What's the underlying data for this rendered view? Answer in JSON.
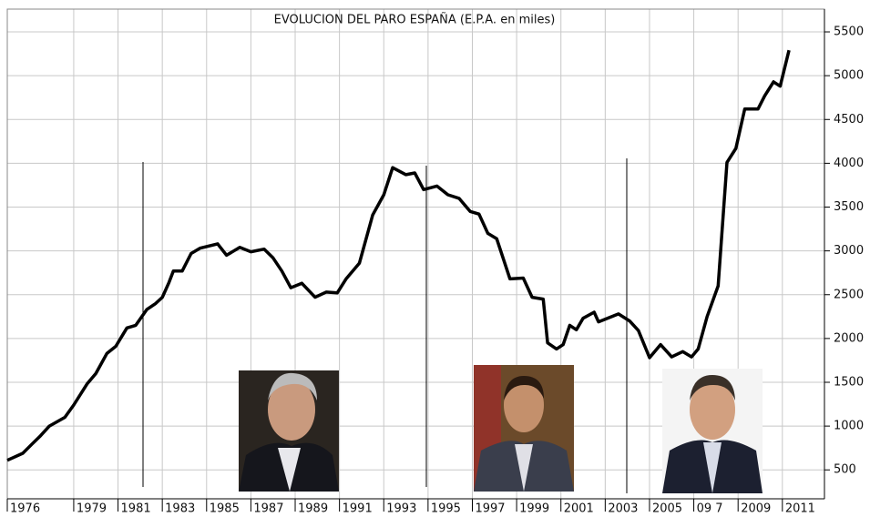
{
  "chart_data": {
    "type": "line",
    "title": "EVOLUCION DEL PARO ESPAÑA (E.P.A. en miles)",
    "x": [
      1976.0,
      1976.7,
      1977.1,
      1977.5,
      1977.9,
      1978.6,
      1979.0,
      1979.6,
      1980.0,
      1980.5,
      1980.9,
      1981.4,
      1981.8,
      1982.3,
      1982.7,
      1983.0,
      1983.3,
      1983.5,
      1983.9,
      1984.3,
      1984.7,
      1985.5,
      1985.9,
      1986.5,
      1987.0,
      1987.6,
      1988.0,
      1988.4,
      1988.8,
      1989.3,
      1989.9,
      1990.4,
      1990.9,
      1991.3,
      1991.9,
      1992.5,
      1993.0,
      1993.4,
      1994.0,
      1994.4,
      1994.8,
      1995.4,
      1995.9,
      1996.4,
      1996.9,
      1997.3,
      1997.7,
      1998.1,
      1998.7,
      1999.3,
      1999.7,
      2000.2,
      2000.4,
      2000.8,
      2001.1,
      2001.4,
      2001.7,
      2002.0,
      2002.5,
      2002.7,
      2003.6,
      2004.1,
      2004.5,
      2005.0,
      2005.5,
      2006.0,
      2006.5,
      2006.9,
      2007.2,
      2007.6,
      2008.1,
      2008.5,
      2008.9,
      2009.3,
      2009.9,
      2010.2,
      2010.6,
      2010.9,
      2011.3
    ],
    "series": [
      {
        "color": "#000000",
        "values": [
          610,
          690,
          790,
          890,
          1000,
          1100,
          1240,
          1480,
          1600,
          1830,
          1910,
          2120,
          2150,
          2330,
          2400,
          2470,
          2640,
          2770,
          2770,
          2970,
          3030,
          3080,
          2950,
          3040,
          2990,
          3020,
          2920,
          2770,
          2580,
          2630,
          2470,
          2530,
          2520,
          2680,
          2860,
          3410,
          3640,
          3950,
          3870,
          3890,
          3700,
          3740,
          3640,
          3600,
          3450,
          3420,
          3200,
          3140,
          2680,
          2690,
          2470,
          2450,
          1950,
          1880,
          1930,
          2150,
          2100,
          2230,
          2300,
          2190,
          2280,
          2200,
          2090,
          1780,
          1930,
          1790,
          1850,
          1790,
          1880,
          2250,
          2600,
          4010,
          4170,
          4620,
          4620,
          4770,
          4930,
          4880,
          5290
        ]
      }
    ],
    "xlim": [
      1976,
      2012.9
    ],
    "xticks": [
      1976,
      1979,
      1981,
      1983,
      1985,
      1987,
      1989,
      1991,
      1993,
      1995,
      1997,
      1999,
      2001,
      2003,
      2005,
      {
        "value": 2007,
        "label": "09 7"
      },
      2009,
      2011
    ],
    "ylim": [
      170,
      5760
    ],
    "yticks": [
      500,
      1000,
      1500,
      2000,
      2500,
      3000,
      3500,
      4000,
      4500,
      5000,
      5500
    ],
    "grid": true
  }
}
